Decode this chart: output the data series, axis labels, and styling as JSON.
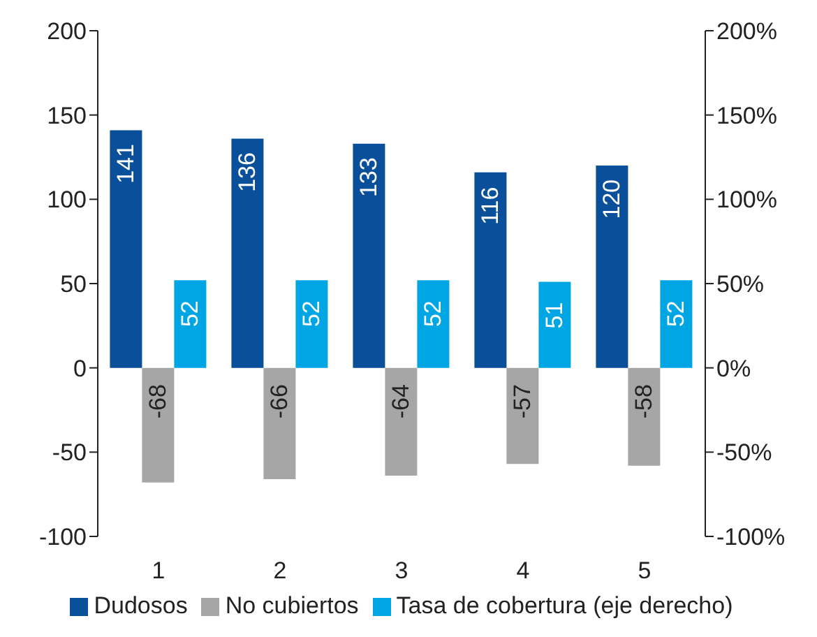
{
  "chart_data": {
    "type": "bar",
    "categories": [
      "1",
      "2",
      "3",
      "4",
      "5"
    ],
    "series": [
      {
        "name": "Dudosos",
        "color": "#0a4f9a",
        "values": [
          141,
          136,
          133,
          116,
          120
        ]
      },
      {
        "name": "No cubiertos",
        "color": "#a6a6a6",
        "values": [
          -68,
          -66,
          -64,
          -57,
          -58
        ]
      },
      {
        "name": "Tasa de cobertura (eje derecho)",
        "color": "#00a6e4",
        "values": [
          52,
          52,
          52,
          51,
          52
        ],
        "axis": "y2"
      }
    ],
    "ylim": [
      -100,
      200
    ],
    "yticks": [
      -100,
      -50,
      0,
      50,
      100,
      150,
      200
    ],
    "y2lim": [
      -100,
      200
    ],
    "y2ticks": [
      {
        "value": -100,
        "label": "-100%"
      },
      {
        "value": -50,
        "label": "-50%"
      },
      {
        "value": 0,
        "label": "0%"
      },
      {
        "value": 50,
        "label": "50%"
      },
      {
        "value": 100,
        "label": "100%"
      },
      {
        "value": 150,
        "label": "150%"
      },
      {
        "value": 200,
        "label": "200%"
      }
    ],
    "data_labels": true,
    "legend": "bottom",
    "grid": false
  }
}
